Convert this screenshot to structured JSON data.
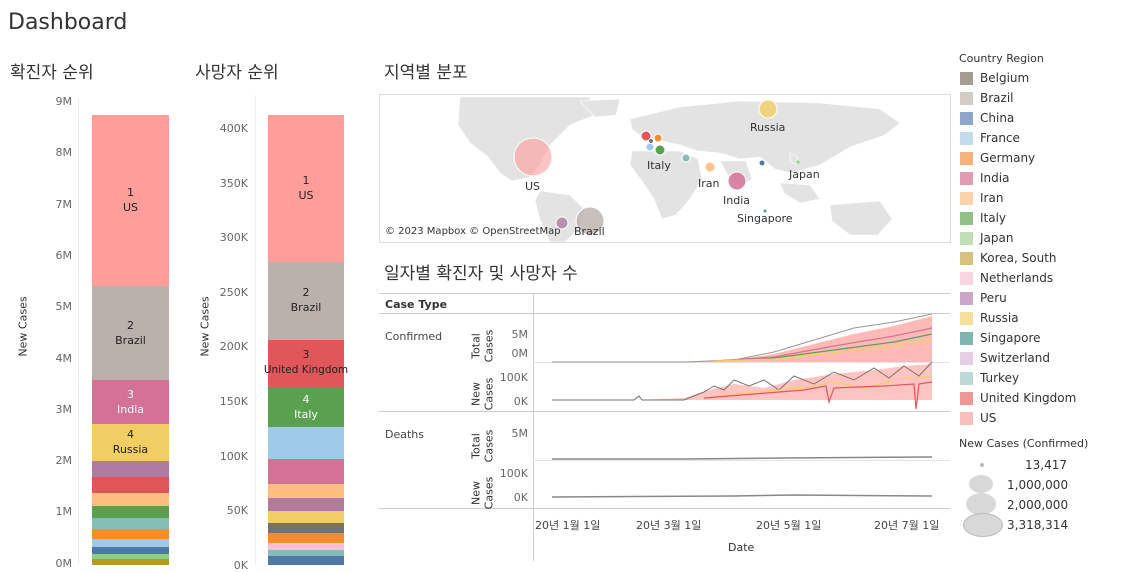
{
  "dashboard": {
    "title": "Dashboard"
  },
  "confirmed_rank": {
    "title": "확진자 순위",
    "axis_label": "New Cases",
    "ticks": [
      "9M",
      "8M",
      "7M",
      "6M",
      "5M",
      "4M",
      "3M",
      "2M",
      "1M",
      "0M"
    ],
    "labels": [
      {
        "rank": "1",
        "name": "US"
      },
      {
        "rank": "2",
        "name": "Brazil"
      },
      {
        "rank": "3",
        "name": "India"
      },
      {
        "rank": "4",
        "name": "Russia"
      }
    ]
  },
  "death_rank": {
    "title": "사망자 순위",
    "axis_label": "New Cases",
    "ticks": [
      "400K",
      "350K",
      "300K",
      "250K",
      "200K",
      "150K",
      "100K",
      "50K",
      "0K"
    ],
    "labels": [
      {
        "rank": "1",
        "name": "US"
      },
      {
        "rank": "2",
        "name": "Brazil"
      },
      {
        "rank": "3",
        "name": "United Kingdom"
      },
      {
        "rank": "4",
        "name": "Italy"
      }
    ]
  },
  "map": {
    "title": "지역별 분포",
    "attribution": "© 2023 Mapbox © OpenStreetMap",
    "labels": [
      "Russia",
      "US",
      "Italy",
      "Iran",
      "India",
      "Japan",
      "Singapore",
      "Brazil"
    ]
  },
  "daily": {
    "title": "일자별 확진자 및 사망자 수",
    "case_type_header": "Case Type",
    "case_types": [
      "Confirmed",
      "Deaths"
    ],
    "row_total": "Total Cases",
    "row_new": "New Cases",
    "total_ticks_confirmed": [
      "5M",
      "0M"
    ],
    "new_ticks_confirmed": [
      "100K",
      "0K"
    ],
    "total_ticks_deaths": [
      "5M"
    ],
    "new_ticks_deaths": [
      "100K",
      "0K"
    ],
    "x_ticks": [
      "20년 1월 1일",
      "20년 3월 1일",
      "20년 5월 1일",
      "20년 7월 1일"
    ],
    "x_label": "Date"
  },
  "legend": {
    "title": "Country Region",
    "items": [
      {
        "name": "Belgium",
        "color": "#a59d93"
      },
      {
        "name": "Brazil",
        "color": "#d3cdc5"
      },
      {
        "name": "China",
        "color": "#8ca7c9"
      },
      {
        "name": "France",
        "color": "#c2dbed"
      },
      {
        "name": "Germany",
        "color": "#f5b27b"
      },
      {
        "name": "India",
        "color": "#e19bb2"
      },
      {
        "name": "Iran",
        "color": "#fbd3aa"
      },
      {
        "name": "Italy",
        "color": "#8fc086"
      },
      {
        "name": "Japan",
        "color": "#bfe0b5"
      },
      {
        "name": "Korea, South",
        "color": "#d6c27e"
      },
      {
        "name": "Netherlands",
        "color": "#f8d6e1"
      },
      {
        "name": "Peru",
        "color": "#caa6c8"
      },
      {
        "name": "Russia",
        "color": "#f5df9d"
      },
      {
        "name": "Singapore",
        "color": "#7fb5b0"
      },
      {
        "name": "Switzerland",
        "color": "#e4cfe6"
      },
      {
        "name": "Turkey",
        "color": "#bcd9d8"
      },
      {
        "name": "United Kingdom",
        "color": "#ef9792"
      },
      {
        "name": "US",
        "color": "#f8c0bd"
      }
    ],
    "size_title": "New Cases (Confirmed)",
    "size_items": [
      "13,417",
      "1,000,000",
      "2,000,000",
      "3,318,314"
    ]
  }
}
